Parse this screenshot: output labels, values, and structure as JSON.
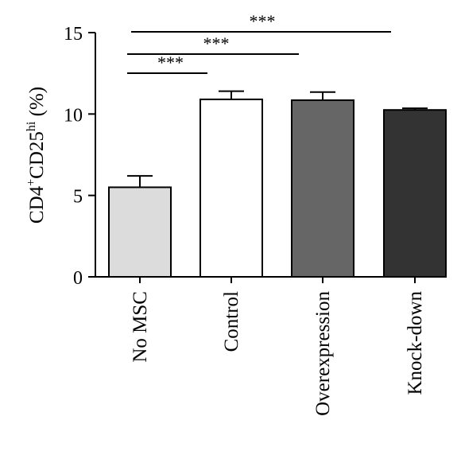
{
  "chart_data": {
    "type": "bar",
    "categories": [
      "No MSC",
      "Control",
      "Overexpression",
      "Knock-down"
    ],
    "values": [
      5.5,
      10.9,
      10.85,
      10.25
    ],
    "errors": [
      0.7,
      0.5,
      0.5,
      0.1
    ],
    "colors": [
      "#dcdcdc",
      "#ffffff",
      "#666666",
      "#333333"
    ],
    "ylabel": {
      "main": "CD4",
      "sup1": "+",
      "mid": "CD25",
      "sup2": "hi",
      "unit": " (%)"
    },
    "ylim": [
      0,
      15
    ],
    "yticks": [
      0,
      5,
      10,
      15
    ],
    "ytick_labels": [
      "0",
      "5",
      "10",
      "15"
    ],
    "significance": [
      {
        "from": 0,
        "to": 1,
        "label": "***"
      },
      {
        "from": 0,
        "to": 2,
        "label": "***"
      },
      {
        "from": 0,
        "to": 3,
        "label": "***"
      }
    ]
  }
}
